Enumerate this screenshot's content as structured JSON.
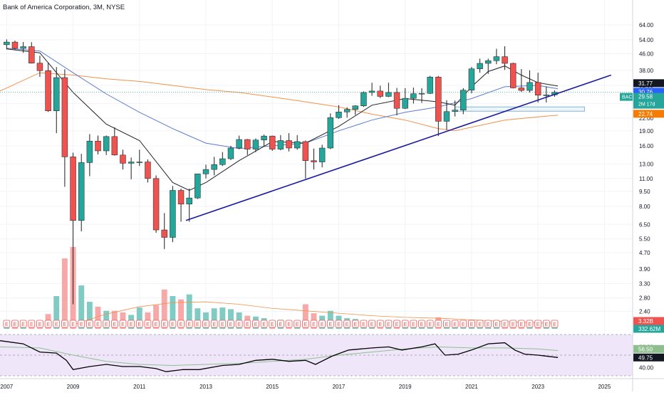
{
  "header": {
    "title": "Bank of America Corporation, 3M, NYSE"
  },
  "colors": {
    "up": "#26a69a",
    "down": "#ef5350",
    "up_vol": "#80cbc4",
    "down_vol": "#f7a9a7",
    "sma_short": "#222222",
    "sma_mid": "#5b7bd5",
    "sma_long": "#f2914a",
    "trendline": "#1a1aa0",
    "rsi_line": "#000000",
    "rsi_ma": "#8fbf8f",
    "rsi_band": "#f0e6fa",
    "box": "#7fb3d8",
    "earnings": "#ef5350"
  },
  "price_axis": {
    "scale": "log",
    "ticks": [
      "64.00",
      "54.00",
      "46.00",
      "38.00",
      "32.00",
      "26.00",
      "22.00",
      "19.00",
      "16.00",
      "13.00",
      "11.00",
      "9.50",
      "8.00",
      "6.50",
      "5.50",
      "4.70",
      "3.90",
      "3.30",
      "2.80",
      "2.40"
    ],
    "labels": {
      "sma_short": "31.77",
      "sma_mid": "30.76",
      "last": "29.58",
      "ticker": "BAC",
      "countdown": "2M 17d",
      "sma_long": "22.74",
      "volume": "3.32B",
      "volume_ma": "332.62M"
    }
  },
  "time_axis": {
    "ticks": [
      "2007",
      "2009",
      "2011",
      "2013",
      "2015",
      "2017",
      "2019",
      "2021",
      "2023",
      "2025"
    ]
  },
  "rsi_axis": {
    "ticks": [
      "60.00",
      "40.00"
    ],
    "labels": {
      "rsi_ma": "56.50",
      "rsi": "49.75"
    }
  },
  "chart_data": {
    "type": "candlestick",
    "title": "Bank of America Corporation, 3M, NYSE",
    "period": "3M",
    "x_range": [
      "2006-10",
      "2025-12"
    ],
    "price_range": [
      2.2,
      76
    ],
    "candles": [
      {
        "t": "2007-01",
        "o": 51.0,
        "h": 54.2,
        "l": 48.4,
        "c": 52.6
      },
      {
        "t": "2007-04",
        "o": 52.6,
        "h": 53.5,
        "l": 48.3,
        "c": 48.9
      },
      {
        "t": "2007-07",
        "o": 48.9,
        "h": 52.6,
        "l": 46.5,
        "c": 49.9
      },
      {
        "t": "2007-10",
        "o": 49.9,
        "h": 52.5,
        "l": 41.1,
        "c": 41.3
      },
      {
        "t": "2008-01",
        "o": 41.3,
        "h": 45.0,
        "l": 35.3,
        "c": 37.9
      },
      {
        "t": "2008-04",
        "o": 37.9,
        "h": 41.5,
        "l": 23.6,
        "c": 23.9
      },
      {
        "t": "2008-07",
        "o": 23.9,
        "h": 39.5,
        "l": 18.5,
        "c": 35.0
      },
      {
        "t": "2008-10",
        "o": 35.0,
        "h": 38.5,
        "l": 10.0,
        "c": 14.1
      },
      {
        "t": "2009-01",
        "o": 14.1,
        "h": 14.8,
        "l": 2.6,
        "c": 6.8
      },
      {
        "t": "2009-04",
        "o": 6.8,
        "h": 14.6,
        "l": 6.0,
        "c": 13.2
      },
      {
        "t": "2009-07",
        "o": 13.2,
        "h": 18.3,
        "l": 11.3,
        "c": 16.9
      },
      {
        "t": "2009-10",
        "o": 16.9,
        "h": 18.0,
        "l": 14.5,
        "c": 15.1
      },
      {
        "t": "2010-01",
        "o": 15.1,
        "h": 18.0,
        "l": 14.4,
        "c": 17.8
      },
      {
        "t": "2010-04",
        "o": 17.8,
        "h": 19.8,
        "l": 14.3,
        "c": 14.4
      },
      {
        "t": "2010-07",
        "o": 14.4,
        "h": 15.3,
        "l": 12.2,
        "c": 13.1
      },
      {
        "t": "2010-10",
        "o": 13.1,
        "h": 14.0,
        "l": 10.9,
        "c": 13.3
      },
      {
        "t": "2011-01",
        "o": 13.3,
        "h": 15.3,
        "l": 12.7,
        "c": 13.3
      },
      {
        "t": "2011-04",
        "o": 13.3,
        "h": 13.7,
        "l": 10.5,
        "c": 11.0
      },
      {
        "t": "2011-07",
        "o": 11.0,
        "h": 11.4,
        "l": 5.9,
        "c": 6.1
      },
      {
        "t": "2011-10",
        "o": 6.1,
        "h": 7.4,
        "l": 4.9,
        "c": 5.6
      },
      {
        "t": "2012-01",
        "o": 5.6,
        "h": 10.1,
        "l": 5.3,
        "c": 9.6
      },
      {
        "t": "2012-04",
        "o": 9.6,
        "h": 9.8,
        "l": 6.7,
        "c": 8.2
      },
      {
        "t": "2012-07",
        "o": 8.2,
        "h": 9.8,
        "l": 6.7,
        "c": 8.8
      },
      {
        "t": "2012-10",
        "o": 8.8,
        "h": 11.6,
        "l": 8.7,
        "c": 11.6
      },
      {
        "t": "2013-01",
        "o": 11.6,
        "h": 12.9,
        "l": 11.0,
        "c": 12.2
      },
      {
        "t": "2013-04",
        "o": 12.2,
        "h": 14.1,
        "l": 11.4,
        "c": 12.9
      },
      {
        "t": "2013-07",
        "o": 12.9,
        "h": 14.9,
        "l": 12.7,
        "c": 13.8
      },
      {
        "t": "2013-10",
        "o": 13.8,
        "h": 16.0,
        "l": 13.6,
        "c": 15.6
      },
      {
        "t": "2014-01",
        "o": 15.6,
        "h": 18.0,
        "l": 15.4,
        "c": 17.2
      },
      {
        "t": "2014-04",
        "o": 17.2,
        "h": 17.3,
        "l": 14.4,
        "c": 15.4
      },
      {
        "t": "2014-07",
        "o": 15.4,
        "h": 17.4,
        "l": 14.9,
        "c": 17.1
      },
      {
        "t": "2014-10",
        "o": 17.1,
        "h": 18.2,
        "l": 15.8,
        "c": 17.9
      },
      {
        "t": "2015-01",
        "o": 17.9,
        "h": 18.0,
        "l": 15.1,
        "c": 15.4
      },
      {
        "t": "2015-04",
        "o": 15.4,
        "h": 18.1,
        "l": 15.2,
        "c": 17.0
      },
      {
        "t": "2015-07",
        "o": 17.0,
        "h": 18.5,
        "l": 15.0,
        "c": 15.6
      },
      {
        "t": "2015-10",
        "o": 15.6,
        "h": 18.1,
        "l": 15.3,
        "c": 16.8
      },
      {
        "t": "2016-01",
        "o": 16.8,
        "h": 17.0,
        "l": 11.0,
        "c": 13.5
      },
      {
        "t": "2016-04",
        "o": 13.5,
        "h": 15.5,
        "l": 12.2,
        "c": 13.3
      },
      {
        "t": "2016-07",
        "o": 13.3,
        "h": 16.2,
        "l": 12.5,
        "c": 15.6
      },
      {
        "t": "2016-10",
        "o": 15.6,
        "h": 23.2,
        "l": 15.4,
        "c": 22.1
      },
      {
        "t": "2017-01",
        "o": 22.1,
        "h": 25.5,
        "l": 21.8,
        "c": 23.6
      },
      {
        "t": "2017-04",
        "o": 23.6,
        "h": 24.9,
        "l": 22.1,
        "c": 24.3
      },
      {
        "t": "2017-07",
        "o": 24.3,
        "h": 25.5,
        "l": 22.8,
        "c": 25.3
      },
      {
        "t": "2017-10",
        "o": 25.3,
        "h": 29.9,
        "l": 25.0,
        "c": 29.5
      },
      {
        "t": "2018-01",
        "o": 29.5,
        "h": 33.0,
        "l": 28.4,
        "c": 30.0
      },
      {
        "t": "2018-04",
        "o": 30.0,
        "h": 31.9,
        "l": 27.7,
        "c": 28.2
      },
      {
        "t": "2018-07",
        "o": 28.2,
        "h": 33.0,
        "l": 28.0,
        "c": 29.5
      },
      {
        "t": "2018-10",
        "o": 29.5,
        "h": 31.1,
        "l": 22.7,
        "c": 24.6
      },
      {
        "t": "2019-01",
        "o": 24.6,
        "h": 31.0,
        "l": 24.4,
        "c": 27.6
      },
      {
        "t": "2019-04",
        "o": 27.6,
        "h": 31.2,
        "l": 26.0,
        "c": 29.1
      },
      {
        "t": "2019-07",
        "o": 29.1,
        "h": 31.0,
        "l": 26.2,
        "c": 29.2
      },
      {
        "t": "2019-10",
        "o": 29.2,
        "h": 35.7,
        "l": 29.0,
        "c": 35.2
      },
      {
        "t": "2020-01",
        "o": 35.2,
        "h": 35.7,
        "l": 17.9,
        "c": 21.2
      },
      {
        "t": "2020-04",
        "o": 21.2,
        "h": 27.0,
        "l": 19.2,
        "c": 23.7
      },
      {
        "t": "2020-07",
        "o": 23.7,
        "h": 26.9,
        "l": 22.4,
        "c": 24.1
      },
      {
        "t": "2020-10",
        "o": 24.1,
        "h": 31.0,
        "l": 23.0,
        "c": 30.3
      },
      {
        "t": "2021-01",
        "o": 30.3,
        "h": 39.5,
        "l": 29.2,
        "c": 38.7
      },
      {
        "t": "2021-04",
        "o": 38.7,
        "h": 43.5,
        "l": 37.0,
        "c": 41.2
      },
      {
        "t": "2021-07",
        "o": 41.2,
        "h": 43.5,
        "l": 36.5,
        "c": 42.5
      },
      {
        "t": "2021-10",
        "o": 42.5,
        "h": 48.7,
        "l": 40.8,
        "c": 44.5
      },
      {
        "t": "2022-01",
        "o": 44.5,
        "h": 50.1,
        "l": 38.2,
        "c": 41.2
      },
      {
        "t": "2022-04",
        "o": 41.2,
        "h": 41.5,
        "l": 30.9,
        "c": 31.1
      },
      {
        "t": "2022-07",
        "o": 31.1,
        "h": 38.6,
        "l": 29.7,
        "c": 30.2
      },
      {
        "t": "2022-10",
        "o": 30.2,
        "h": 38.0,
        "l": 29.5,
        "c": 33.1
      },
      {
        "t": "2023-01",
        "o": 33.1,
        "h": 37.0,
        "l": 26.3,
        "c": 28.6
      },
      {
        "t": "2023-04",
        "o": 28.6,
        "h": 31.6,
        "l": 26.3,
        "c": 28.7
      },
      {
        "t": "2023-07",
        "o": 28.7,
        "h": 30.2,
        "l": 28.1,
        "c": 29.58
      }
    ],
    "volume_relative": [
      0.02,
      0.03,
      0.04,
      0.06,
      0.1,
      0.18,
      0.4,
      0.86,
      1.0,
      0.53,
      0.33,
      0.27,
      0.22,
      0.22,
      0.2,
      0.17,
      0.26,
      0.2,
      0.29,
      0.48,
      0.4,
      0.36,
      0.42,
      0.25,
      0.2,
      0.25,
      0.26,
      0.24,
      0.2,
      0.16,
      0.15,
      0.13,
      0.1,
      0.11,
      0.08,
      0.08,
      0.3,
      0.19,
      0.16,
      0.22,
      0.16,
      0.13,
      0.12,
      0.1,
      0.1,
      0.08,
      0.07,
      0.06,
      0.07,
      0.06,
      0.05,
      0.06,
      0.14,
      0.1,
      0.06,
      0.06,
      0.06,
      0.06,
      0.05,
      0.04,
      0.05,
      0.06,
      0.05,
      0.05,
      0.05,
      0.04,
      0.02
    ],
    "sma_short": [
      [
        2007.0,
        48.6
      ],
      [
        2008.0,
        46.5
      ],
      [
        2009.0,
        29.5
      ],
      [
        2010.0,
        20.5
      ],
      [
        2011.0,
        17.0
      ],
      [
        2012.0,
        10.5
      ],
      [
        2012.5,
        9.6
      ],
      [
        2013.0,
        10.5
      ],
      [
        2014.0,
        13.5
      ],
      [
        2015.0,
        16.8
      ],
      [
        2016.0,
        16.5
      ],
      [
        2017.0,
        20.0
      ],
      [
        2018.0,
        25.5
      ],
      [
        2019.0,
        27.5
      ],
      [
        2020.0,
        26.5
      ],
      [
        2020.5,
        25.5
      ],
      [
        2021.0,
        31.5
      ],
      [
        2021.5,
        37.5
      ],
      [
        2022.0,
        40.0
      ],
      [
        2022.5,
        36.0
      ],
      [
        2023.0,
        33.0
      ],
      [
        2023.6,
        31.77
      ]
    ],
    "sma_mid": [
      [
        2007.0,
        49.0
      ],
      [
        2008.0,
        47.5
      ],
      [
        2009.0,
        37.0
      ],
      [
        2010.0,
        29.0
      ],
      [
        2011.0,
        23.5
      ],
      [
        2012.0,
        19.5
      ],
      [
        2013.0,
        16.5
      ],
      [
        2014.0,
        15.5
      ],
      [
        2015.0,
        16.0
      ],
      [
        2016.0,
        16.5
      ],
      [
        2017.0,
        19.0
      ],
      [
        2018.0,
        21.5
      ],
      [
        2019.0,
        23.5
      ],
      [
        2020.0,
        25.0
      ],
      [
        2021.0,
        27.5
      ],
      [
        2022.0,
        31.5
      ],
      [
        2023.0,
        32.0
      ],
      [
        2023.6,
        30.76
      ]
    ],
    "sma_long": [
      [
        2006.8,
        30.0
      ],
      [
        2008.0,
        37.0
      ],
      [
        2009.0,
        36.0
      ],
      [
        2010.0,
        34.5
      ],
      [
        2011.0,
        33.5
      ],
      [
        2012.0,
        32.0
      ],
      [
        2013.0,
        30.5
      ],
      [
        2014.0,
        29.5
      ],
      [
        2015.0,
        28.0
      ],
      [
        2016.0,
        26.5
      ],
      [
        2017.0,
        25.0
      ],
      [
        2018.0,
        23.0
      ],
      [
        2019.0,
        21.5
      ],
      [
        2020.0,
        19.5
      ],
      [
        2020.5,
        19.0
      ],
      [
        2021.0,
        19.8
      ],
      [
        2022.0,
        21.5
      ],
      [
        2023.0,
        22.3
      ],
      [
        2023.6,
        22.74
      ]
    ],
    "trendline": {
      "start": {
        "t": 2012.4,
        "p": 6.8
      },
      "end": {
        "t": 2025.2,
        "p": 36.0
      }
    },
    "box": {
      "t1": 2020.5,
      "t2": 2024.4,
      "p_low": 23.8,
      "p_high": 25.0
    },
    "volume_ma_relative": [
      [
        2009.0,
        0.05
      ],
      [
        2010.0,
        0.18
      ],
      [
        2011.0,
        0.27
      ],
      [
        2012.0,
        0.32
      ],
      [
        2013.0,
        0.33
      ],
      [
        2014.0,
        0.3
      ],
      [
        2015.0,
        0.25
      ],
      [
        2016.0,
        0.22
      ],
      [
        2017.0,
        0.19
      ],
      [
        2018.0,
        0.16
      ],
      [
        2019.0,
        0.14
      ],
      [
        2020.0,
        0.13
      ],
      [
        2021.0,
        0.11
      ],
      [
        2022.0,
        0.09
      ],
      [
        2023.0,
        0.07
      ],
      [
        2023.6,
        0.07
      ]
    ],
    "rsi_range": [
      32,
      72
    ],
    "rsi": [
      [
        2006.8,
        66
      ],
      [
        2007.5,
        63
      ],
      [
        2008.0,
        55
      ],
      [
        2008.5,
        54
      ],
      [
        2008.8,
        47
      ],
      [
        2009.0,
        38
      ],
      [
        2009.5,
        41
      ],
      [
        2010.0,
        43
      ],
      [
        2010.5,
        41
      ],
      [
        2011.0,
        41
      ],
      [
        2011.5,
        39
      ],
      [
        2011.8,
        36
      ],
      [
        2012.3,
        38
      ],
      [
        2012.8,
        38
      ],
      [
        2013.5,
        42
      ],
      [
        2014.0,
        43
      ],
      [
        2014.5,
        47
      ],
      [
        2015.0,
        48
      ],
      [
        2015.5,
        46
      ],
      [
        2016.0,
        47
      ],
      [
        2016.3,
        43
      ],
      [
        2016.8,
        51
      ],
      [
        2017.3,
        57
      ],
      [
        2018.0,
        59
      ],
      [
        2018.5,
        60
      ],
      [
        2018.9,
        57
      ],
      [
        2019.5,
        60
      ],
      [
        2019.9,
        63
      ],
      [
        2020.2,
        52
      ],
      [
        2020.6,
        53
      ],
      [
        2021.0,
        57
      ],
      [
        2021.5,
        63
      ],
      [
        2022.0,
        64
      ],
      [
        2022.3,
        57
      ],
      [
        2022.6,
        53
      ],
      [
        2023.0,
        52
      ],
      [
        2023.6,
        49.75
      ]
    ],
    "rsi_ma": [
      [
        2006.8,
        60
      ],
      [
        2008.0,
        59
      ],
      [
        2009.0,
        52
      ],
      [
        2010.0,
        46
      ],
      [
        2011.0,
        43
      ],
      [
        2012.0,
        42
      ],
      [
        2013.0,
        43
      ],
      [
        2014.0,
        44
      ],
      [
        2015.0,
        46
      ],
      [
        2016.0,
        48
      ],
      [
        2017.0,
        52
      ],
      [
        2018.0,
        55
      ],
      [
        2019.0,
        58
      ],
      [
        2020.0,
        60
      ],
      [
        2021.0,
        59
      ],
      [
        2022.0,
        59
      ],
      [
        2023.0,
        58
      ],
      [
        2023.6,
        56.5
      ]
    ]
  }
}
